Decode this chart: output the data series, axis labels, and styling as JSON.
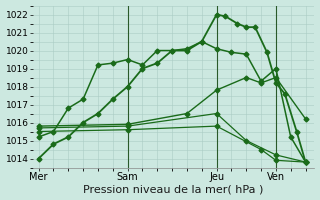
{
  "xlabel": "Pression niveau de la mer( hPa )",
  "bg_color": "#cce8e0",
  "grid_color": "#aaccc4",
  "line_color": "#1a6b1a",
  "ylim": [
    1013.5,
    1022.5
  ],
  "yticks": [
    1014,
    1015,
    1016,
    1017,
    1018,
    1019,
    1020,
    1021,
    1022
  ],
  "xtick_labels": [
    "Mer",
    "Sam",
    "Jeu",
    "Ven"
  ],
  "xtick_positions": [
    0,
    3,
    6,
    8
  ],
  "xlim": [
    -0.2,
    9.3
  ],
  "lines": [
    {
      "x": [
        0,
        0.5,
        1,
        1.5,
        2,
        2.5,
        3,
        3.5,
        4,
        4.5,
        5,
        5.5,
        6,
        6.3,
        6.7,
        7,
        7.3,
        7.7,
        8,
        8.3,
        8.7,
        9
      ],
      "y": [
        1014.0,
        1014.8,
        1015.2,
        1016.0,
        1016.5,
        1017.3,
        1018.0,
        1019.0,
        1019.3,
        1020.0,
        1020.0,
        1020.5,
        1022.0,
        1021.9,
        1021.5,
        1021.3,
        1021.3,
        1019.9,
        1018.2,
        1017.6,
        1015.5,
        1013.8
      ],
      "style": "-",
      "marker": "D",
      "markersize": 2.5,
      "lw": 1.3
    },
    {
      "x": [
        0,
        0.5,
        1,
        1.5,
        2,
        2.5,
        3,
        3.5,
        4,
        4.5,
        5,
        5.5,
        6,
        6.5,
        7,
        7.5,
        8,
        8.5,
        9
      ],
      "y": [
        1015.2,
        1015.5,
        1016.8,
        1017.3,
        1019.2,
        1019.3,
        1019.5,
        1019.2,
        1020.0,
        1020.0,
        1020.1,
        1020.5,
        1020.1,
        1019.9,
        1019.8,
        1018.3,
        1019.0,
        1015.2,
        1013.8
      ],
      "style": "-",
      "marker": "D",
      "markersize": 2.5,
      "lw": 1.1
    },
    {
      "x": [
        0,
        3,
        5,
        6,
        7,
        7.5,
        8,
        9
      ],
      "y": [
        1015.8,
        1015.9,
        1016.5,
        1017.8,
        1018.5,
        1018.2,
        1018.5,
        1016.2
      ],
      "style": "-",
      "marker": "D",
      "markersize": 2.5,
      "lw": 1.0
    },
    {
      "x": [
        0,
        3,
        6,
        7,
        8,
        9
      ],
      "y": [
        1015.7,
        1015.8,
        1016.5,
        1015.0,
        1014.2,
        1013.8
      ],
      "style": "-",
      "marker": "D",
      "markersize": 2.5,
      "lw": 0.9
    },
    {
      "x": [
        0,
        3,
        6,
        7.5,
        8,
        9
      ],
      "y": [
        1015.5,
        1015.6,
        1015.8,
        1014.5,
        1013.9,
        1013.8
      ],
      "style": "-",
      "marker": "D",
      "markersize": 2.5,
      "lw": 0.9
    }
  ],
  "vlines_x": [
    3,
    6,
    8
  ],
  "xlabel_fontsize": 8,
  "ytick_fontsize": 6.5,
  "xtick_fontsize": 7
}
